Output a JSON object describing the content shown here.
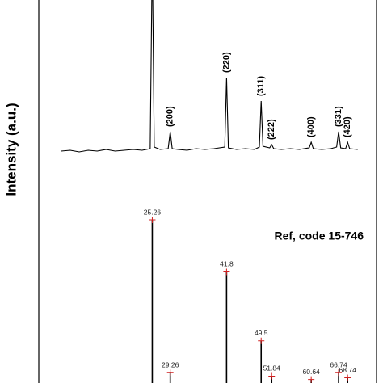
{
  "chart_data": [
    {
      "type": "line",
      "ylabel": "Intensity (a.u.)",
      "color": "#000000",
      "xlim": [
        0,
        75
      ],
      "ylim": [
        0,
        190
      ],
      "x": [
        5,
        7,
        9,
        11,
        13,
        15,
        17,
        19,
        21,
        23,
        24.8,
        25.26,
        25.7,
        27,
        28.8,
        29.26,
        29.7,
        31,
        33,
        35,
        37,
        39,
        41.4,
        41.8,
        42.2,
        44,
        46,
        48,
        49.1,
        49.5,
        49.9,
        51.4,
        51.84,
        52.3,
        54,
        56,
        58,
        60.2,
        60.64,
        61.1,
        63,
        65,
        66.3,
        66.74,
        67.2,
        68.3,
        68.74,
        69.2,
        71
      ],
      "values": [
        3,
        4,
        2,
        4,
        3,
        5,
        3,
        4,
        5,
        4,
        6,
        250,
        8,
        5,
        6,
        27,
        6,
        5,
        4,
        6,
        5,
        6,
        8,
        94,
        7,
        5,
        6,
        5,
        8,
        65,
        9,
        7,
        11,
        6,
        5,
        6,
        5,
        7,
        14,
        6,
        5,
        6,
        8,
        27,
        7,
        6,
        14,
        6,
        5
      ],
      "annotations": [
        {
          "text": "(200)",
          "x": 29.26
        },
        {
          "text": "(220)",
          "x": 41.8
        },
        {
          "text": "(311)",
          "x": 49.5
        },
        {
          "text": "(222)",
          "x": 51.84
        },
        {
          "text": "(400)",
          "x": 60.64
        },
        {
          "text": "(331)",
          "x": 66.74
        },
        {
          "text": "(420)",
          "x": 68.74
        }
      ]
    },
    {
      "type": "bar",
      "title": "Ref, code 15-746",
      "color": "#000000",
      "marker_color": "#d02020",
      "xlim": [
        0,
        75
      ],
      "ylim": [
        0,
        100
      ],
      "x": [
        25.26,
        29.26,
        41.8,
        49.5,
        51.84,
        60.64,
        66.74,
        68.74
      ],
      "values": [
        100,
        9,
        69,
        28,
        7,
        5,
        9,
        6
      ]
    }
  ]
}
